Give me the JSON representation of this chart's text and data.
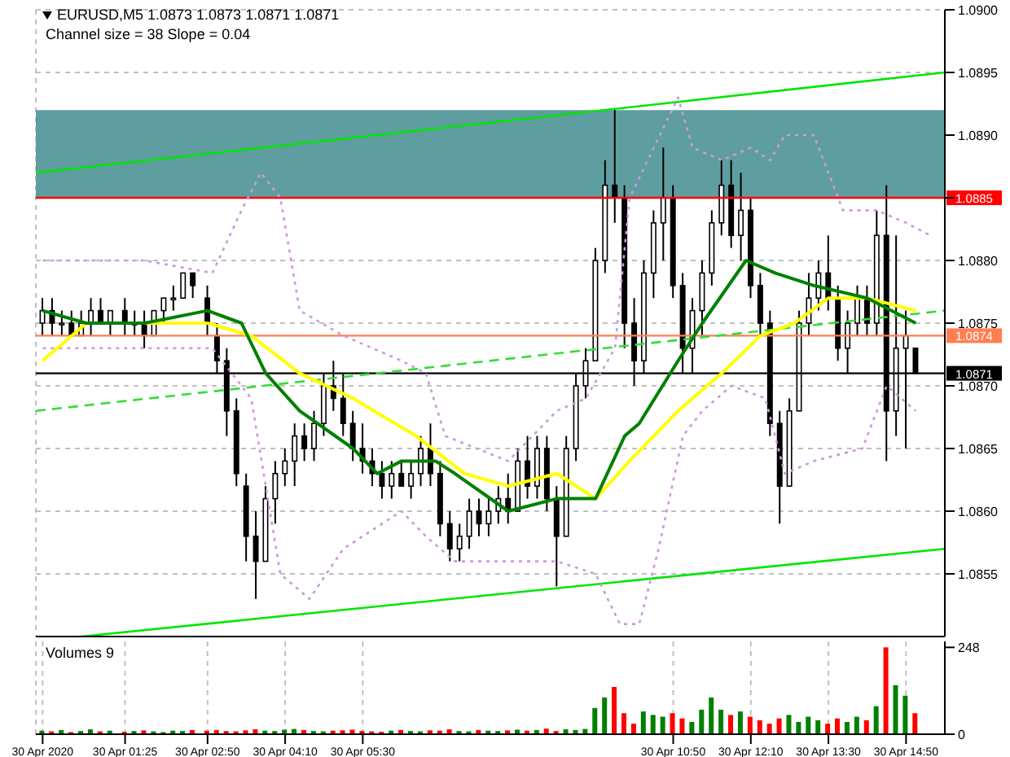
{
  "chart_data": [
    {
      "type": "candlestick",
      "title": "EURUSD,M5 1.0873 1.0873 1.0871 1.0871",
      "annotations": [
        "Channel size = 38 Slope = 0.04"
      ],
      "color": "#000000",
      "marker": "none",
      "grid": true,
      "tick_labels": "y",
      "x": [
        "2020-04-30T00:00",
        "2020-04-30T00:10",
        "2020-04-30T00:20",
        "2020-04-30T00:30",
        "2020-04-30T00:40",
        "2020-04-30T00:50",
        "2020-04-30T01:00",
        "2020-04-30T01:10",
        "2020-04-30T01:25",
        "2020-04-30T01:35",
        "2020-04-30T01:45",
        "2020-04-30T01:55",
        "2020-04-30T02:05",
        "2020-04-30T02:15",
        "2020-04-30T02:25",
        "2020-04-30T02:35",
        "2020-04-30T02:50",
        "2020-04-30T03:00",
        "2020-04-30T03:10",
        "2020-04-30T03:20",
        "2020-04-30T03:30",
        "2020-04-30T03:40",
        "2020-04-30T03:50",
        "2020-04-30T04:00",
        "2020-04-30T04:10",
        "2020-04-30T04:20",
        "2020-04-30T04:30",
        "2020-04-30T04:40",
        "2020-04-30T04:50",
        "2020-04-30T05:00",
        "2020-04-30T05:10",
        "2020-04-30T05:20",
        "2020-04-30T05:30",
        "2020-04-30T05:40",
        "2020-04-30T05:50",
        "2020-04-30T06:00",
        "2020-04-30T06:10",
        "2020-04-30T06:20",
        "2020-04-30T06:30",
        "2020-04-30T06:40",
        "2020-04-30T06:50",
        "2020-04-30T07:00",
        "2020-04-30T07:10",
        "2020-04-30T07:20",
        "2020-04-30T07:30",
        "2020-04-30T07:40",
        "2020-04-30T07:50",
        "2020-04-30T08:00",
        "2020-04-30T08:10",
        "2020-04-30T08:20",
        "2020-04-30T08:30",
        "2020-04-30T08:40",
        "2020-04-30T08:50",
        "2020-04-30T09:00",
        "2020-04-30T09:10",
        "2020-04-30T09:20",
        "2020-04-30T09:30",
        "2020-04-30T09:40",
        "2020-04-30T09:50",
        "2020-04-30T10:00",
        "2020-04-30T10:10",
        "2020-04-30T10:20",
        "2020-04-30T10:30",
        "2020-04-30T10:40",
        "2020-04-30T10:50",
        "2020-04-30T11:00",
        "2020-04-30T11:10",
        "2020-04-30T11:20",
        "2020-04-30T11:30",
        "2020-04-30T11:40",
        "2020-04-30T11:50",
        "2020-04-30T12:00",
        "2020-04-30T12:10",
        "2020-04-30T12:20",
        "2020-04-30T12:30",
        "2020-04-30T12:40",
        "2020-04-30T12:50",
        "2020-04-30T13:00",
        "2020-04-30T13:10",
        "2020-04-30T13:20",
        "2020-04-30T13:30",
        "2020-04-30T13:40",
        "2020-04-30T13:50",
        "2020-04-30T14:00",
        "2020-04-30T14:10",
        "2020-04-30T14:20",
        "2020-04-30T14:30",
        "2020-04-30T14:40",
        "2020-04-30T14:50",
        "2020-04-30T15:00"
      ],
      "ohlc": [
        [
          1.0875,
          1.0877,
          1.0874,
          1.0876
        ],
        [
          1.0876,
          1.0877,
          1.0874,
          1.0875
        ],
        [
          1.0875,
          1.0876,
          1.0874,
          1.0875
        ],
        [
          1.0875,
          1.0876,
          1.0874,
          1.0874
        ],
        [
          1.0874,
          1.0876,
          1.0874,
          1.0875
        ],
        [
          1.0875,
          1.0877,
          1.0874,
          1.0876
        ],
        [
          1.0876,
          1.0877,
          1.0875,
          1.0875
        ],
        [
          1.0875,
          1.0876,
          1.0874,
          1.0876
        ],
        [
          1.0876,
          1.0877,
          1.0874,
          1.0875
        ],
        [
          1.0875,
          1.0876,
          1.0874,
          1.0875
        ],
        [
          1.0875,
          1.0876,
          1.0873,
          1.0874
        ],
        [
          1.0874,
          1.0876,
          1.0874,
          1.0876
        ],
        [
          1.0876,
          1.0877,
          1.0875,
          1.0877
        ],
        [
          1.0877,
          1.0878,
          1.0876,
          1.0877
        ],
        [
          1.0877,
          1.0879,
          1.0877,
          1.0879
        ],
        [
          1.0879,
          1.0879,
          1.0877,
          1.0878
        ],
        [
          1.0877,
          1.0878,
          1.0874,
          1.0875
        ],
        [
          1.0874,
          1.0875,
          1.0871,
          1.0872
        ],
        [
          1.0872,
          1.0873,
          1.0866,
          1.0868
        ],
        [
          1.0868,
          1.0869,
          1.0862,
          1.0863
        ],
        [
          1.0862,
          1.0863,
          1.0856,
          1.0858
        ],
        [
          1.0858,
          1.086,
          1.0853,
          1.0856
        ],
        [
          1.0856,
          1.0862,
          1.0856,
          1.0861
        ],
        [
          1.0861,
          1.0864,
          1.0859,
          1.0863
        ],
        [
          1.0863,
          1.0865,
          1.0862,
          1.0864
        ],
        [
          1.0864,
          1.0867,
          1.0862,
          1.0866
        ],
        [
          1.0866,
          1.0867,
          1.0864,
          1.0865
        ],
        [
          1.0865,
          1.0868,
          1.0864,
          1.0867
        ],
        [
          1.0867,
          1.0871,
          1.0866,
          1.087
        ],
        [
          1.087,
          1.0872,
          1.0868,
          1.0869
        ],
        [
          1.0869,
          1.0871,
          1.0866,
          1.0867
        ],
        [
          1.0867,
          1.0868,
          1.0864,
          1.0865
        ],
        [
          1.0865,
          1.0867,
          1.0863,
          1.0864
        ],
        [
          1.0864,
          1.0865,
          1.0862,
          1.0863
        ],
        [
          1.0863,
          1.0864,
          1.0861,
          1.0862
        ],
        [
          1.0862,
          1.0864,
          1.0861,
          1.0863
        ],
        [
          1.0863,
          1.0864,
          1.0862,
          1.0862
        ],
        [
          1.0862,
          1.0864,
          1.0861,
          1.0863
        ],
        [
          1.0863,
          1.0866,
          1.0862,
          1.0865
        ],
        [
          1.0865,
          1.0867,
          1.0862,
          1.0863
        ],
        [
          1.0863,
          1.0864,
          1.0858,
          1.0859
        ],
        [
          1.0859,
          1.086,
          1.0856,
          1.0857
        ],
        [
          1.0857,
          1.0859,
          1.0856,
          1.0858
        ],
        [
          1.0858,
          1.0861,
          1.0857,
          1.086
        ],
        [
          1.086,
          1.0861,
          1.0858,
          1.0859
        ],
        [
          1.0859,
          1.0861,
          1.0858,
          1.086
        ],
        [
          1.086,
          1.0862,
          1.0859,
          1.0861
        ],
        [
          1.0861,
          1.0863,
          1.0859,
          1.086
        ],
        [
          1.086,
          1.0865,
          1.086,
          1.0864
        ],
        [
          1.0864,
          1.0866,
          1.0861,
          1.0862
        ],
        [
          1.0862,
          1.0866,
          1.0861,
          1.0865
        ],
        [
          1.0865,
          1.0866,
          1.086,
          1.0861
        ],
        [
          1.0861,
          1.0862,
          1.0854,
          1.0858
        ],
        [
          1.0858,
          1.0866,
          1.0858,
          1.0865
        ],
        [
          1.0865,
          1.0871,
          1.0864,
          1.087
        ],
        [
          1.087,
          1.0873,
          1.0869,
          1.0872
        ],
        [
          1.0872,
          1.0881,
          1.0872,
          1.088
        ],
        [
          1.088,
          1.0888,
          1.0879,
          1.0886
        ],
        [
          1.0886,
          1.0892,
          1.0883,
          1.0885
        ],
        [
          1.0885,
          1.0886,
          1.0873,
          1.0875
        ],
        [
          1.0875,
          1.0877,
          1.087,
          1.0872
        ],
        [
          1.0872,
          1.088,
          1.0871,
          1.0879
        ],
        [
          1.0879,
          1.0884,
          1.0877,
          1.0883
        ],
        [
          1.0883,
          1.0889,
          1.088,
          1.0885
        ],
        [
          1.0885,
          1.0886,
          1.0877,
          1.0878
        ],
        [
          1.0878,
          1.0879,
          1.0871,
          1.0873
        ],
        [
          1.0873,
          1.0877,
          1.0871,
          1.0876
        ],
        [
          1.0876,
          1.088,
          1.0874,
          1.0879
        ],
        [
          1.0879,
          1.0884,
          1.0878,
          1.0883
        ],
        [
          1.0883,
          1.0888,
          1.0882,
          1.0886
        ],
        [
          1.0886,
          1.0888,
          1.0881,
          1.0882
        ],
        [
          1.0882,
          1.0887,
          1.088,
          1.0884
        ],
        [
          1.0884,
          1.0885,
          1.0877,
          1.0878
        ],
        [
          1.0878,
          1.0879,
          1.0874,
          1.0875
        ],
        [
          1.0875,
          1.0876,
          1.0866,
          1.0867
        ],
        [
          1.0867,
          1.0868,
          1.0859,
          1.0862
        ],
        [
          1.0862,
          1.0869,
          1.0862,
          1.0868
        ],
        [
          1.0868,
          1.0876,
          1.0868,
          1.0875
        ],
        [
          1.0875,
          1.0879,
          1.0874,
          1.0877
        ],
        [
          1.0877,
          1.088,
          1.0876,
          1.0879
        ],
        [
          1.0879,
          1.0882,
          1.0876,
          1.0877
        ],
        [
          1.0877,
          1.0878,
          1.0872,
          1.0873
        ],
        [
          1.0873,
          1.0876,
          1.0871,
          1.0875
        ],
        [
          1.0875,
          1.0878,
          1.0874,
          1.0877
        ],
        [
          1.0877,
          1.0878,
          1.0874,
          1.0875
        ],
        [
          1.0875,
          1.0884,
          1.0874,
          1.0882
        ],
        [
          1.0882,
          1.0886,
          1.0864,
          1.0868
        ],
        [
          1.0868,
          1.0882,
          1.0866,
          1.0873
        ],
        [
          1.0873,
          1.0876,
          1.0865,
          1.0874
        ],
        [
          1.0873,
          1.0873,
          1.0871,
          1.0871
        ]
      ],
      "series": [
        {
          "type": "line",
          "color": "#00e600",
          "line_style": "solid",
          "x": [
            "2020-04-29T23:53",
            "2020-04-30T15:30"
          ],
          "values": [
            1.0887,
            1.0895
          ]
        },
        {
          "type": "line",
          "color": "#00e600",
          "line_style": "solid",
          "x": [
            "2020-04-30T00:40",
            "2020-04-30T15:30"
          ],
          "values": [
            1.085,
            1.0857
          ]
        },
        {
          "type": "line",
          "color": "#33dd33",
          "line_style": "dashed",
          "x": [
            "2020-04-29T23:53",
            "2020-04-30T15:30"
          ],
          "values": [
            1.0868,
            1.0876
          ]
        },
        {
          "type": "line",
          "color": "#cc99dd",
          "line_style": "dotted",
          "x": [
            "2020-04-30T00:00",
            "2020-04-30T00:45",
            "2020-04-30T01:45",
            "2020-04-30T02:55",
            "2020-04-30T03:25",
            "2020-04-30T03:45",
            "2020-04-30T04:05",
            "2020-04-30T04:25",
            "2020-04-30T05:10",
            "2020-04-30T06:10",
            "2020-04-30T06:35",
            "2020-04-30T06:55",
            "2020-04-30T08:00",
            "2020-04-30T08:50",
            "2020-04-30T09:20",
            "2020-04-30T09:50",
            "2020-04-30T10:05",
            "2020-04-30T10:55",
            "2020-04-30T11:10",
            "2020-04-30T11:40",
            "2020-04-30T12:10",
            "2020-04-30T12:30",
            "2020-04-30T12:45",
            "2020-04-30T13:15",
            "2020-04-30T13:45",
            "2020-04-30T14:20",
            "2020-04-30T14:50",
            "2020-04-30T15:15"
          ],
          "values": [
            1.088,
            1.088,
            1.088,
            1.0879,
            1.0884,
            1.0887,
            1.0885,
            1.0876,
            1.0874,
            1.0872,
            1.0871,
            1.0866,
            1.0864,
            1.0868,
            1.0869,
            1.0873,
            1.0885,
            1.0893,
            1.0889,
            1.0888,
            1.0889,
            1.0888,
            1.089,
            1.089,
            1.0884,
            1.0884,
            1.0883,
            1.0882
          ]
        },
        {
          "type": "line",
          "color": "#cc99dd",
          "line_style": "dotted",
          "x": [
            "2020-04-30T00:00",
            "2020-04-30T01:45",
            "2020-04-30T02:55",
            "2020-04-30T03:35",
            "2020-04-30T04:05",
            "2020-04-30T04:35",
            "2020-04-30T05:10",
            "2020-04-30T06:10",
            "2020-04-30T06:35",
            "2020-04-30T07:05",
            "2020-04-30T08:00",
            "2020-04-30T08:50",
            "2020-04-30T09:30",
            "2020-04-30T09:55",
            "2020-04-30T10:15",
            "2020-04-30T10:35",
            "2020-04-30T11:00",
            "2020-04-30T11:20",
            "2020-04-30T11:50",
            "2020-04-30T12:25",
            "2020-04-30T12:45",
            "2020-04-30T13:15",
            "2020-04-30T14:05",
            "2020-04-30T14:30",
            "2020-04-30T15:00"
          ],
          "values": [
            1.0873,
            1.0873,
            1.0873,
            1.0869,
            1.0855,
            1.0853,
            1.0857,
            1.086,
            1.0858,
            1.0856,
            1.0856,
            1.0856,
            1.0855,
            1.0851,
            1.0851,
            1.0857,
            1.0866,
            1.0868,
            1.087,
            1.0869,
            1.0863,
            1.0864,
            1.0865,
            1.087,
            1.0868
          ]
        },
        {
          "type": "line",
          "color": "#ffff00",
          "line_style": "solid",
          "x": [
            "2020-04-30T00:00",
            "2020-04-30T00:45",
            "2020-04-30T02:50",
            "2020-04-30T03:35",
            "2020-04-30T04:25",
            "2020-04-30T05:20",
            "2020-04-30T06:25",
            "2020-04-30T07:15",
            "2020-04-30T08:00",
            "2020-04-30T08:50",
            "2020-04-30T09:30",
            "2020-04-30T10:05",
            "2020-04-30T10:55",
            "2020-04-30T11:40",
            "2020-04-30T12:20",
            "2020-04-30T12:55",
            "2020-04-30T13:30",
            "2020-04-30T14:10",
            "2020-04-30T15:00"
          ],
          "values": [
            1.0872,
            1.0875,
            1.0875,
            1.0874,
            1.0871,
            1.0869,
            1.0866,
            1.0863,
            1.0862,
            1.0863,
            1.0861,
            1.0864,
            1.0868,
            1.0871,
            1.0874,
            1.0875,
            1.0877,
            1.0877,
            1.0876
          ]
        },
        {
          "type": "line",
          "color": "#008000",
          "line_style": "solid",
          "x": [
            "2020-04-30T00:00",
            "2020-04-30T00:45",
            "2020-04-30T01:45",
            "2020-04-30T02:50",
            "2020-04-30T03:25",
            "2020-04-30T03:50",
            "2020-04-30T04:25",
            "2020-04-30T05:20",
            "2020-04-30T05:45",
            "2020-04-30T06:10",
            "2020-04-30T06:45",
            "2020-04-30T07:05",
            "2020-04-30T08:00",
            "2020-04-30T08:50",
            "2020-04-30T09:30",
            "2020-04-30T10:00",
            "2020-04-30T10:15",
            "2020-04-30T10:55",
            "2020-04-30T11:20",
            "2020-04-30T12:05",
            "2020-04-30T12:35",
            "2020-04-30T13:15",
            "2020-04-30T14:10",
            "2020-04-30T15:00"
          ],
          "values": [
            1.0876,
            1.0875,
            1.0875,
            1.0876,
            1.0875,
            1.0871,
            1.0868,
            1.0865,
            1.0863,
            1.0864,
            1.0864,
            1.0863,
            1.086,
            1.0861,
            1.0861,
            1.0866,
            1.0867,
            1.0872,
            1.0875,
            1.088,
            1.0879,
            1.0878,
            1.0877,
            1.0875
          ]
        }
      ],
      "bands": [
        {
          "axis": "y",
          "from": 1.0885,
          "to": 1.0892,
          "color": "#5f9ea0"
        }
      ],
      "ref_lines": [
        {
          "axis": "y",
          "value": 1.0885,
          "label": "1.0885",
          "color": "#ff0000"
        },
        {
          "axis": "y",
          "value": 1.0874,
          "label": "1.0874",
          "color": "#ff7f50"
        },
        {
          "axis": "y",
          "value": 1.0871,
          "label": "1.0871",
          "color": "#000000"
        }
      ],
      "xlim": [
        "2020-04-29T23:53",
        "2020-04-30T15:30"
      ],
      "xticks": [
        {
          "value": "2020-04-30T00:00",
          "label": null
        },
        {
          "value": "2020-04-30T01:25",
          "label": null
        },
        {
          "value": "2020-04-30T02:50",
          "label": null
        },
        {
          "value": "2020-04-30T04:10",
          "label": null
        },
        {
          "value": "2020-04-30T05:30",
          "label": null
        },
        {
          "value": "2020-04-30T10:50",
          "label": null
        },
        {
          "value": "2020-04-30T12:10",
          "label": null
        },
        {
          "value": "2020-04-30T13:30",
          "label": null
        },
        {
          "value": "2020-04-30T14:50",
          "label": null
        }
      ],
      "ylim": [
        1.085,
        1.09
      ],
      "yticks": [
        {
          "value": 1.0855,
          "label": "1.0855"
        },
        {
          "value": 1.086,
          "label": "1.0860"
        },
        {
          "value": 1.0865,
          "label": "1.0865"
        },
        {
          "value": 1.087,
          "label": "1.0870"
        },
        {
          "value": 1.0875,
          "label": "1.0875"
        },
        {
          "value": 1.088,
          "label": "1.0880"
        },
        {
          "value": 1.0885,
          "label": null
        },
        {
          "value": 1.089,
          "label": "1.0890"
        },
        {
          "value": 1.0895,
          "label": "1.0895"
        },
        {
          "value": 1.09,
          "label": "1.0900"
        }
      ]
    },
    {
      "type": "bar",
      "title": "Volumes 9",
      "grid": "x",
      "x": [
        "2020-04-30T00:00",
        "2020-04-30T00:10",
        "2020-04-30T00:20",
        "2020-04-30T00:30",
        "2020-04-30T00:40",
        "2020-04-30T00:50",
        "2020-04-30T01:00",
        "2020-04-30T01:10",
        "2020-04-30T01:25",
        "2020-04-30T01:35",
        "2020-04-30T01:45",
        "2020-04-30T01:55",
        "2020-04-30T02:05",
        "2020-04-30T02:15",
        "2020-04-30T02:25",
        "2020-04-30T02:35",
        "2020-04-30T02:50",
        "2020-04-30T03:00",
        "2020-04-30T03:10",
        "2020-04-30T03:20",
        "2020-04-30T03:30",
        "2020-04-30T03:40",
        "2020-04-30T03:50",
        "2020-04-30T04:00",
        "2020-04-30T04:10",
        "2020-04-30T04:20",
        "2020-04-30T04:30",
        "2020-04-30T04:40",
        "2020-04-30T04:50",
        "2020-04-30T05:00",
        "2020-04-30T05:10",
        "2020-04-30T05:20",
        "2020-04-30T05:30",
        "2020-04-30T05:40",
        "2020-04-30T05:50",
        "2020-04-30T06:00",
        "2020-04-30T06:10",
        "2020-04-30T06:20",
        "2020-04-30T06:30",
        "2020-04-30T06:40",
        "2020-04-30T06:50",
        "2020-04-30T07:00",
        "2020-04-30T07:10",
        "2020-04-30T07:20",
        "2020-04-30T07:30",
        "2020-04-30T07:40",
        "2020-04-30T07:50",
        "2020-04-30T08:00",
        "2020-04-30T08:10",
        "2020-04-30T08:20",
        "2020-04-30T08:30",
        "2020-04-30T08:40",
        "2020-04-30T08:50",
        "2020-04-30T09:00",
        "2020-04-30T09:10",
        "2020-04-30T09:20",
        "2020-04-30T09:30",
        "2020-04-30T09:40",
        "2020-04-30T09:50",
        "2020-04-30T10:00",
        "2020-04-30T10:10",
        "2020-04-30T10:20",
        "2020-04-30T10:30",
        "2020-04-30T10:40",
        "2020-04-30T10:50",
        "2020-04-30T11:00",
        "2020-04-30T11:10",
        "2020-04-30T11:20",
        "2020-04-30T11:30",
        "2020-04-30T11:40",
        "2020-04-30T11:50",
        "2020-04-30T12:00",
        "2020-04-30T12:10",
        "2020-04-30T12:20",
        "2020-04-30T12:30",
        "2020-04-30T12:40",
        "2020-04-30T12:50",
        "2020-04-30T13:00",
        "2020-04-30T13:10",
        "2020-04-30T13:20",
        "2020-04-30T13:30",
        "2020-04-30T13:40",
        "2020-04-30T13:50",
        "2020-04-30T14:00",
        "2020-04-30T14:10",
        "2020-04-30T14:20",
        "2020-04-30T14:30",
        "2020-04-30T14:40",
        "2020-04-30T14:50",
        "2020-04-30T15:00"
      ],
      "values": [
        10,
        8,
        12,
        6,
        9,
        14,
        8,
        10,
        7,
        9,
        11,
        8,
        6,
        10,
        9,
        12,
        10,
        12,
        9,
        8,
        11,
        14,
        10,
        9,
        13,
        15,
        12,
        9,
        8,
        10,
        11,
        13,
        9,
        8,
        7,
        10,
        12,
        9,
        8,
        11,
        10,
        14,
        9,
        8,
        12,
        10,
        9,
        11,
        13,
        10,
        12,
        16,
        9,
        14,
        12,
        15,
        75,
        105,
        135,
        60,
        30,
        65,
        55,
        50,
        60,
        45,
        35,
        70,
        105,
        70,
        55,
        65,
        50,
        40,
        30,
        45,
        55,
        35,
        50,
        40,
        30,
        45,
        35,
        50,
        40,
        80,
        248,
        140,
        110,
        60
      ],
      "colors": [
        "#008000",
        "#ff0000",
        "#008000",
        "#ff0000",
        "#008000",
        "#008000",
        "#ff0000",
        "#008000",
        "#ff0000",
        "#008000",
        "#ff0000",
        "#008000",
        "#008000",
        "#008000",
        "#008000",
        "#ff0000",
        "#ff0000",
        "#ff0000",
        "#ff0000",
        "#ff0000",
        "#ff0000",
        "#ff0000",
        "#008000",
        "#008000",
        "#008000",
        "#008000",
        "#ff0000",
        "#008000",
        "#008000",
        "#ff0000",
        "#ff0000",
        "#ff0000",
        "#ff0000",
        "#ff0000",
        "#ff0000",
        "#008000",
        "#ff0000",
        "#008000",
        "#008000",
        "#ff0000",
        "#ff0000",
        "#ff0000",
        "#008000",
        "#008000",
        "#ff0000",
        "#008000",
        "#008000",
        "#ff0000",
        "#008000",
        "#ff0000",
        "#008000",
        "#ff0000",
        "#ff0000",
        "#008000",
        "#008000",
        "#008000",
        "#008000",
        "#008000",
        "#ff0000",
        "#ff0000",
        "#ff0000",
        "#008000",
        "#008000",
        "#008000",
        "#ff0000",
        "#ff0000",
        "#008000",
        "#008000",
        "#008000",
        "#008000",
        "#ff0000",
        "#008000",
        "#ff0000",
        "#ff0000",
        "#ff0000",
        "#ff0000",
        "#008000",
        "#008000",
        "#008000",
        "#008000",
        "#ff0000",
        "#ff0000",
        "#008000",
        "#008000",
        "#ff0000",
        "#008000",
        "#ff0000",
        "#008000",
        "#008000",
        "#ff0000"
      ],
      "xlim": [
        "2020-04-29T23:53",
        "2020-04-30T15:30"
      ],
      "xticks": [
        {
          "value": "2020-04-30T00:00",
          "label": "30 Apr 2020"
        },
        {
          "value": "2020-04-30T01:25",
          "label": "30 Apr 01:25"
        },
        {
          "value": "2020-04-30T02:50",
          "label": "30 Apr 02:50"
        },
        {
          "value": "2020-04-30T04:10",
          "label": "30 Apr 04:10"
        },
        {
          "value": "2020-04-30T05:30",
          "label": "30 Apr 05:30"
        },
        {
          "value": "2020-04-30T10:50",
          "label": "30 Apr 10:50"
        },
        {
          "value": "2020-04-30T12:10",
          "label": "30 Apr 12:10"
        },
        {
          "value": "2020-04-30T13:30",
          "label": "30 Apr 13:30"
        },
        {
          "value": "2020-04-30T14:50",
          "label": "30 Apr 14:50"
        }
      ],
      "ylim": [
        0,
        265
      ],
      "yticks": [
        0,
        248
      ]
    }
  ]
}
